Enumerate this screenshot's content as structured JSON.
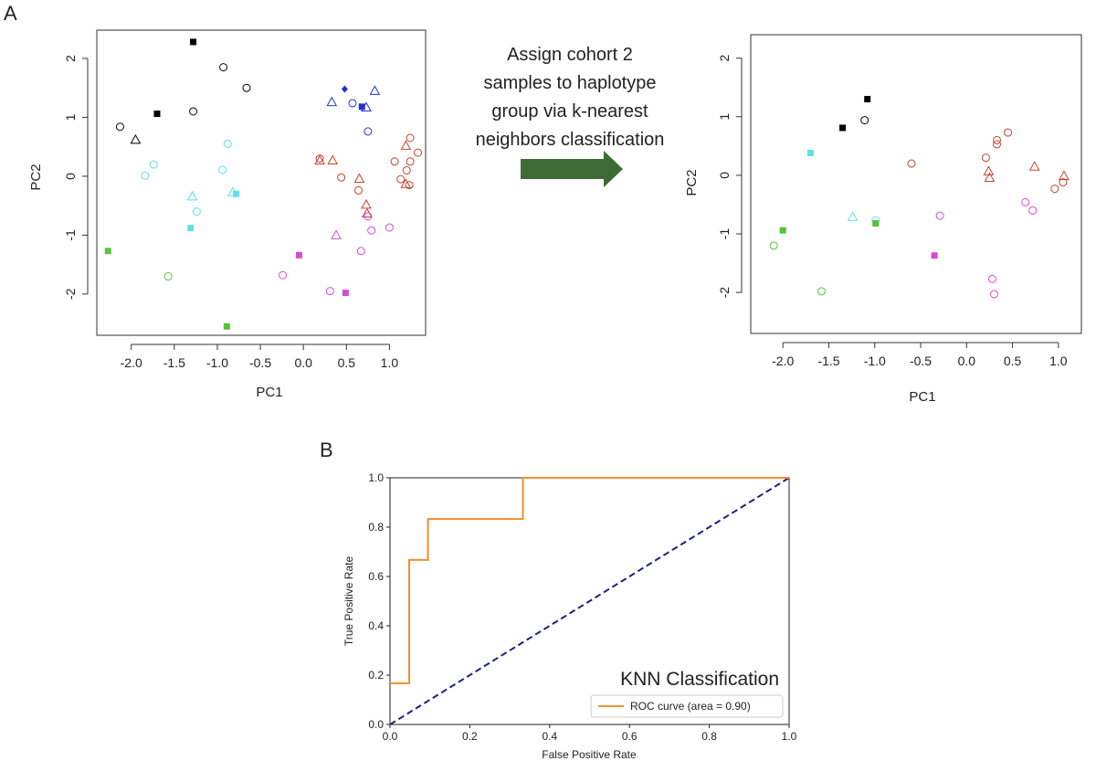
{
  "panels": {
    "a": "A",
    "b": "B"
  },
  "arrow_caption": [
    "Assign cohort 2",
    "samples to haplotype",
    "group via k-nearest",
    "neighbors classification"
  ],
  "arrow_color": "#3e6b35",
  "group_colors": {
    "black": "#000000",
    "cyan": "#5ce1e6",
    "green": "#58c23a",
    "blue": "#2233cc",
    "red": "#c8402f",
    "magenta": "#d44ad4"
  },
  "chart_data": [
    {
      "type": "scatter",
      "panel": "A-left",
      "title": "",
      "xlabel": "PC1",
      "ylabel": "PC2",
      "xlim": [
        -2.4,
        1.42
      ],
      "ylim": [
        -2.7,
        2.48
      ],
      "xticks": [
        "-2.0",
        "-1.5",
        "-1.0",
        "-0.5",
        "0.0",
        "0.5",
        "1.0"
      ],
      "yticks": [
        "-2",
        "-1",
        "0",
        "1",
        "2"
      ],
      "grid": false,
      "points": [
        {
          "x": -1.28,
          "y": 2.28,
          "marker": "square",
          "color": "black"
        },
        {
          "x": -0.93,
          "y": 1.85,
          "marker": "circle",
          "color": "black"
        },
        {
          "x": -0.66,
          "y": 1.5,
          "marker": "circle",
          "color": "black"
        },
        {
          "x": -1.28,
          "y": 1.1,
          "marker": "circle",
          "color": "black"
        },
        {
          "x": -1.7,
          "y": 1.06,
          "marker": "square",
          "color": "black"
        },
        {
          "x": -2.13,
          "y": 0.84,
          "marker": "circle",
          "color": "black"
        },
        {
          "x": -1.95,
          "y": 0.62,
          "marker": "triangle",
          "color": "black"
        },
        {
          "x": -0.88,
          "y": 0.55,
          "marker": "circle",
          "color": "cyan"
        },
        {
          "x": -1.74,
          "y": 0.2,
          "marker": "circle",
          "color": "cyan"
        },
        {
          "x": -1.84,
          "y": 0.01,
          "marker": "circle",
          "color": "cyan"
        },
        {
          "x": -0.94,
          "y": 0.11,
          "marker": "circle",
          "color": "cyan"
        },
        {
          "x": -0.82,
          "y": -0.27,
          "marker": "triangle",
          "color": "cyan"
        },
        {
          "x": -0.78,
          "y": -0.3,
          "marker": "square",
          "color": "cyan"
        },
        {
          "x": -1.29,
          "y": -0.34,
          "marker": "triangle",
          "color": "cyan"
        },
        {
          "x": -1.24,
          "y": -0.6,
          "marker": "circle",
          "color": "cyan"
        },
        {
          "x": -1.31,
          "y": -0.88,
          "marker": "square",
          "color": "cyan"
        },
        {
          "x": -2.27,
          "y": -1.27,
          "marker": "square",
          "color": "green"
        },
        {
          "x": -1.57,
          "y": -1.7,
          "marker": "circle",
          "color": "green"
        },
        {
          "x": -0.89,
          "y": -2.55,
          "marker": "square",
          "color": "green"
        },
        {
          "x": 0.48,
          "y": 1.48,
          "marker": "diamond",
          "color": "blue"
        },
        {
          "x": 0.33,
          "y": 1.26,
          "marker": "triangle",
          "color": "blue"
        },
        {
          "x": 0.57,
          "y": 1.24,
          "marker": "circle",
          "color": "blue"
        },
        {
          "x": 0.83,
          "y": 1.45,
          "marker": "triangle",
          "color": "blue"
        },
        {
          "x": 0.68,
          "y": 1.18,
          "marker": "square",
          "color": "blue"
        },
        {
          "x": 0.73,
          "y": 1.17,
          "marker": "triangle",
          "color": "blue"
        },
        {
          "x": 0.75,
          "y": 0.76,
          "marker": "circle",
          "color": "blue"
        },
        {
          "x": 1.24,
          "y": 0.65,
          "marker": "circle",
          "color": "red"
        },
        {
          "x": 1.19,
          "y": 0.52,
          "marker": "triangle",
          "color": "red"
        },
        {
          "x": 1.33,
          "y": 0.4,
          "marker": "circle",
          "color": "red"
        },
        {
          "x": 0.19,
          "y": 0.3,
          "marker": "circle",
          "color": "red"
        },
        {
          "x": 0.19,
          "y": 0.27,
          "marker": "triangle",
          "color": "red"
        },
        {
          "x": 0.34,
          "y": 0.27,
          "marker": "triangle",
          "color": "red"
        },
        {
          "x": 1.06,
          "y": 0.25,
          "marker": "circle",
          "color": "red"
        },
        {
          "x": 1.24,
          "y": 0.25,
          "marker": "circle",
          "color": "red"
        },
        {
          "x": 1.2,
          "y": 0.1,
          "marker": "circle",
          "color": "red"
        },
        {
          "x": 0.44,
          "y": -0.02,
          "marker": "circle",
          "color": "red"
        },
        {
          "x": 0.65,
          "y": -0.04,
          "marker": "triangle",
          "color": "red"
        },
        {
          "x": 1.13,
          "y": -0.05,
          "marker": "circle",
          "color": "red"
        },
        {
          "x": 1.19,
          "y": -0.13,
          "marker": "triangle",
          "color": "red"
        },
        {
          "x": 1.23,
          "y": -0.15,
          "marker": "circle",
          "color": "red"
        },
        {
          "x": 0.64,
          "y": -0.24,
          "marker": "circle",
          "color": "red"
        },
        {
          "x": 0.73,
          "y": -0.48,
          "marker": "triangle",
          "color": "red"
        },
        {
          "x": 0.74,
          "y": -0.63,
          "marker": "triangle",
          "color": "red"
        },
        {
          "x": 0.75,
          "y": -0.68,
          "marker": "circle",
          "color": "magenta"
        },
        {
          "x": 1.0,
          "y": -0.87,
          "marker": "circle",
          "color": "magenta"
        },
        {
          "x": 0.79,
          "y": -0.92,
          "marker": "circle",
          "color": "magenta"
        },
        {
          "x": 0.38,
          "y": -1.0,
          "marker": "triangle",
          "color": "magenta"
        },
        {
          "x": 0.67,
          "y": -1.27,
          "marker": "circle",
          "color": "magenta"
        },
        {
          "x": -0.05,
          "y": -1.34,
          "marker": "square",
          "color": "magenta"
        },
        {
          "x": -0.24,
          "y": -1.68,
          "marker": "circle",
          "color": "magenta"
        },
        {
          "x": 0.31,
          "y": -1.95,
          "marker": "circle",
          "color": "magenta"
        },
        {
          "x": 0.49,
          "y": -1.98,
          "marker": "square",
          "color": "magenta"
        }
      ]
    },
    {
      "type": "scatter",
      "panel": "A-right",
      "title": "",
      "xlabel": "PC1",
      "ylabel": "PC2",
      "xlim": [
        -2.35,
        1.25
      ],
      "ylim": [
        -2.7,
        2.4
      ],
      "xticks": [
        "-2.0",
        "-1.5",
        "-1.0",
        "-0.5",
        "0.0",
        "0.5",
        "1.0"
      ],
      "yticks": [
        "-2",
        "-1",
        "0",
        "1",
        "2"
      ],
      "grid": false,
      "points": [
        {
          "x": -1.08,
          "y": 1.3,
          "marker": "square",
          "color": "black"
        },
        {
          "x": -1.11,
          "y": 0.94,
          "marker": "circle",
          "color": "black"
        },
        {
          "x": -1.35,
          "y": 0.81,
          "marker": "square",
          "color": "black"
        },
        {
          "x": -1.7,
          "y": 0.38,
          "marker": "square",
          "color": "cyan"
        },
        {
          "x": -1.24,
          "y": -0.71,
          "marker": "triangle",
          "color": "cyan"
        },
        {
          "x": -0.99,
          "y": -0.77,
          "marker": "circle",
          "color": "cyan"
        },
        {
          "x": -0.99,
          "y": -0.82,
          "marker": "square",
          "color": "green"
        },
        {
          "x": -2.0,
          "y": -0.94,
          "marker": "square",
          "color": "green"
        },
        {
          "x": -2.1,
          "y": -1.2,
          "marker": "circle",
          "color": "green"
        },
        {
          "x": -1.58,
          "y": -1.98,
          "marker": "circle",
          "color": "green"
        },
        {
          "x": 0.45,
          "y": 0.73,
          "marker": "circle",
          "color": "red"
        },
        {
          "x": 0.33,
          "y": 0.6,
          "marker": "circle",
          "color": "red"
        },
        {
          "x": 0.33,
          "y": 0.53,
          "marker": "circle",
          "color": "red"
        },
        {
          "x": 0.21,
          "y": 0.3,
          "marker": "circle",
          "color": "red"
        },
        {
          "x": -0.6,
          "y": 0.2,
          "marker": "circle",
          "color": "red"
        },
        {
          "x": 0.74,
          "y": 0.15,
          "marker": "triangle",
          "color": "red"
        },
        {
          "x": 0.24,
          "y": 0.07,
          "marker": "triangle",
          "color": "red"
        },
        {
          "x": 1.06,
          "y": -0.01,
          "marker": "triangle",
          "color": "red"
        },
        {
          "x": 0.25,
          "y": -0.04,
          "marker": "triangle",
          "color": "red"
        },
        {
          "x": 1.05,
          "y": -0.12,
          "marker": "circle",
          "color": "red"
        },
        {
          "x": 0.96,
          "y": -0.23,
          "marker": "circle",
          "color": "red"
        },
        {
          "x": 0.64,
          "y": -0.46,
          "marker": "circle",
          "color": "magenta"
        },
        {
          "x": -0.29,
          "y": -0.69,
          "marker": "circle",
          "color": "magenta"
        },
        {
          "x": 0.72,
          "y": -0.6,
          "marker": "circle",
          "color": "magenta"
        },
        {
          "x": -0.35,
          "y": -1.37,
          "marker": "square",
          "color": "magenta"
        },
        {
          "x": 0.28,
          "y": -1.77,
          "marker": "circle",
          "color": "magenta"
        },
        {
          "x": 0.3,
          "y": -2.03,
          "marker": "circle",
          "color": "magenta"
        }
      ]
    },
    {
      "type": "line",
      "panel": "B",
      "title": "KNN Classification",
      "xlabel": "False Positive Rate",
      "ylabel": "True Positive Rate",
      "xlim": [
        0.0,
        1.0
      ],
      "ylim": [
        0.0,
        1.0
      ],
      "xticks": [
        "0.0",
        "0.2",
        "0.4",
        "0.6",
        "0.8",
        "1.0"
      ],
      "yticks": [
        "0.0",
        "0.2",
        "0.4",
        "0.6",
        "0.8",
        "1.0"
      ],
      "grid": false,
      "legend_position": "lower-right",
      "series": [
        {
          "name": "ROC curve (area = 0.90)",
          "color": "#f28e2b",
          "style": "solid",
          "x": [
            0.0,
            0.048,
            0.048,
            0.095,
            0.095,
            0.333,
            0.333,
            1.0
          ],
          "y": [
            0.167,
            0.167,
            0.667,
            0.667,
            0.833,
            0.833,
            1.0,
            1.0
          ]
        },
        {
          "name": "",
          "color": "#1a237e",
          "style": "dashed",
          "x": [
            0.0,
            1.0
          ],
          "y": [
            0.0,
            1.0
          ]
        }
      ]
    }
  ]
}
